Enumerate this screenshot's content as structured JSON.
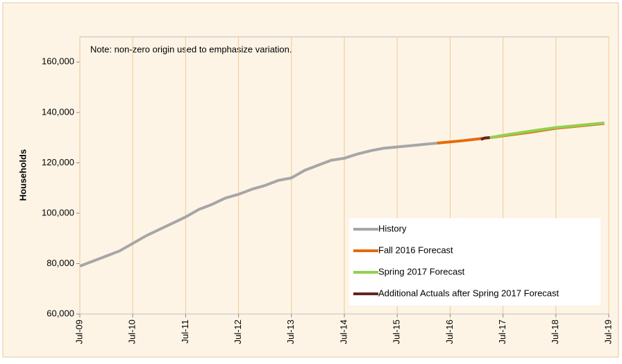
{
  "chart_data": {
    "type": "line",
    "y_label": "Households",
    "note": "Note: non-zero origin used to emphasize variation.",
    "xlim": [
      "2009-07",
      "2019-07"
    ],
    "xticks": [
      {
        "value": "2009-07",
        "label": "Jul-09"
      },
      {
        "value": "2010-07",
        "label": "Jul-10"
      },
      {
        "value": "2011-07",
        "label": "Jul-11"
      },
      {
        "value": "2012-07",
        "label": "Jul-12"
      },
      {
        "value": "2013-07",
        "label": "Jul-13"
      },
      {
        "value": "2014-07",
        "label": "Jul-14"
      },
      {
        "value": "2015-07",
        "label": "Jul-15"
      },
      {
        "value": "2016-07",
        "label": "Jul-16"
      },
      {
        "value": "2017-07",
        "label": "Jul-17"
      },
      {
        "value": "2018-07",
        "label": "Jul-18"
      },
      {
        "value": "2019-07",
        "label": "Jul-19"
      }
    ],
    "ylim": [
      60000,
      170000
    ],
    "yticks": [
      {
        "value": 60000,
        "label": "60,000"
      },
      {
        "value": 80000,
        "label": "80,000"
      },
      {
        "value": 100000,
        "label": "100,000"
      },
      {
        "value": 120000,
        "label": "120,000"
      },
      {
        "value": 140000,
        "label": "140,000"
      },
      {
        "value": 160000,
        "label": "160,000"
      }
    ],
    "grid": "vertical",
    "legend": "lower right",
    "series": [
      {
        "name": "History",
        "color": "#a6a6a6",
        "x": [
          "2009-07",
          "2009-10",
          "2010-01",
          "2010-04",
          "2010-07",
          "2010-10",
          "2011-01",
          "2011-04",
          "2011-07",
          "2011-10",
          "2012-01",
          "2012-04",
          "2012-07",
          "2012-10",
          "2013-01",
          "2013-04",
          "2013-07",
          "2013-10",
          "2014-01",
          "2014-04",
          "2014-07",
          "2014-10",
          "2015-01",
          "2015-04",
          "2015-07",
          "2015-10",
          "2016-01",
          "2016-04"
        ],
        "values": [
          79000,
          81000,
          83000,
          85000,
          88000,
          91000,
          93500,
          96000,
          98500,
          101500,
          103500,
          106000,
          107500,
          109500,
          111000,
          113000,
          114000,
          117000,
          119000,
          121000,
          121800,
          123500,
          124800,
          125800,
          126300,
          126800,
          127300,
          127800
        ]
      },
      {
        "name": "Fall 2016 Forecast",
        "color": "#e36c0a",
        "x": [
          "2016-04",
          "2016-07",
          "2016-10",
          "2017-01",
          "2017-04",
          "2017-07",
          "2018-01",
          "2018-07",
          "2019-06"
        ],
        "values": [
          127800,
          128300,
          128800,
          129400,
          130000,
          130700,
          132100,
          133700,
          135600
        ]
      },
      {
        "name": "Spring 2017 Forecast",
        "color": "#92d050",
        "x": [
          "2017-04",
          "2017-07",
          "2018-01",
          "2018-07",
          "2019-01",
          "2019-06"
        ],
        "values": [
          130000,
          130900,
          132500,
          134000,
          135000,
          135800
        ]
      },
      {
        "name": "Additional Actuals after Spring 2017 Forecast",
        "color": "#632523",
        "x": [
          "2017-02",
          "2017-03",
          "2017-04"
        ],
        "values": [
          129300,
          129900,
          130000
        ]
      }
    ]
  }
}
